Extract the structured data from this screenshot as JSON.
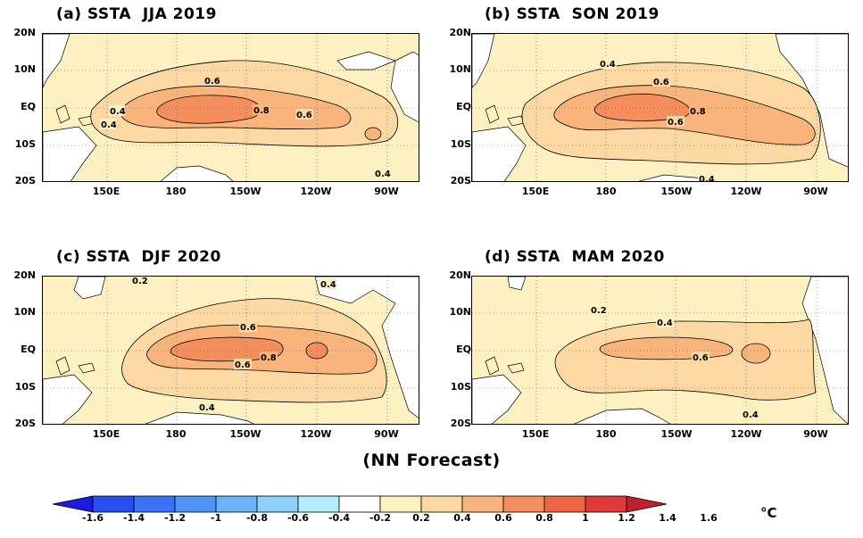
{
  "panels": [
    {
      "title": "(a) SSTA  JJA 2019",
      "labels": [
        "0.6",
        "0.4",
        "0.4",
        "0.8",
        "0.6",
        "0.4"
      ]
    },
    {
      "title": "(b) SSTA  SON 2019",
      "labels": [
        "0.4",
        "0.6",
        "0.8",
        "0.6",
        "0.4"
      ]
    },
    {
      "title": "(c) SSTA  DJF 2020",
      "labels": [
        "0.2",
        "0.4",
        "0.6",
        "0.8",
        "0.6",
        "0.4"
      ]
    },
    {
      "title": "(d) SSTA  MAM 2020",
      "labels": [
        "0.2",
        "0.4",
        "0.6",
        "0.4"
      ]
    }
  ],
  "lat_labels": [
    "20N",
    "10N",
    "EQ",
    "10S",
    "20S"
  ],
  "lon_labels": [
    "150E",
    "180",
    "150W",
    "120W",
    "90W"
  ],
  "footer": "(NN Forecast)",
  "colorbar": {
    "labels": [
      "-1.6",
      "-1.4",
      "-1.2",
      "-1",
      "-0.8",
      "-0.6",
      "-0.4",
      "-0.2",
      "0.2",
      "0.4",
      "0.6",
      "0.8",
      "1",
      "1.2",
      "1.4",
      "1.6"
    ],
    "unit": "°C",
    "colors": [
      "#1a1ae0",
      "#2a4ef0",
      "#3a72f5",
      "#4d96f5",
      "#6cb4f7",
      "#8cd2fa",
      "#b4eefc",
      "#ffffff",
      "#fdf1c2",
      "#fcd9a2",
      "#f9b47c",
      "#f58e5d",
      "#ef6646",
      "#e03b3b",
      "#c0202e"
    ]
  },
  "colors": {
    "c02": "#fdf1c2",
    "c04": "#fcd9a2",
    "c06": "#f9b47c",
    "c08": "#f58e5d",
    "land": "#ffffff"
  }
}
